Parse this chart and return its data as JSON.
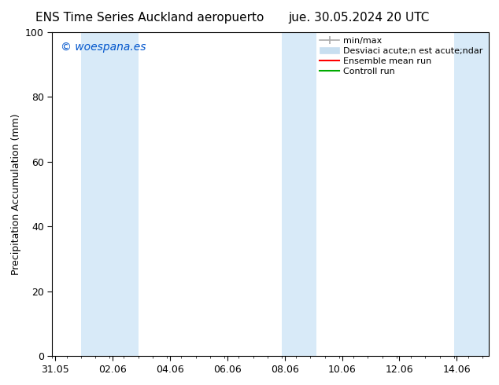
{
  "title_left": "ENS Time Series Auckland aeropuerto",
  "title_right": "jue. 30.05.2024 20 UTC",
  "ylabel": "Precipitation Accumulation (mm)",
  "ylim": [
    0,
    100
  ],
  "yticks": [
    0,
    20,
    40,
    60,
    80,
    100
  ],
  "xtick_labels": [
    "31.05",
    "02.06",
    "04.06",
    "06.06",
    "08.06",
    "10.06",
    "12.06",
    "14.06"
  ],
  "xtick_positions": [
    0,
    2,
    4,
    6,
    8,
    10,
    12,
    14
  ],
  "xlim": [
    -0.1,
    15.1
  ],
  "watermark": "© woespana.es",
  "watermark_color": "#0055cc",
  "bg_color": "#ffffff",
  "plot_bg_color": "#ffffff",
  "shaded_bands": [
    {
      "x_start": 0.9,
      "x_end": 2.9,
      "color": "#d8eaf8"
    },
    {
      "x_start": 7.9,
      "x_end": 9.1,
      "color": "#d8eaf8"
    },
    {
      "x_start": 13.9,
      "x_end": 15.1,
      "color": "#d8eaf8"
    }
  ],
  "legend_minmax_color": "#aaaaaa",
  "legend_desviac_color": "#c8dff0",
  "legend_ensemble_color": "#ff0000",
  "legend_control_color": "#00aa00",
  "legend_label_minmax": "min/max",
  "legend_label_desviac": "Desviaci acute;n est acute;ndar",
  "legend_label_ensemble": "Ensemble mean run",
  "legend_label_control": "Controll run",
  "font_size_title": 11,
  "font_size_axis": 9,
  "font_size_legend": 8,
  "font_size_watermark": 10,
  "spine_color": "#000000",
  "tick_color": "#000000"
}
